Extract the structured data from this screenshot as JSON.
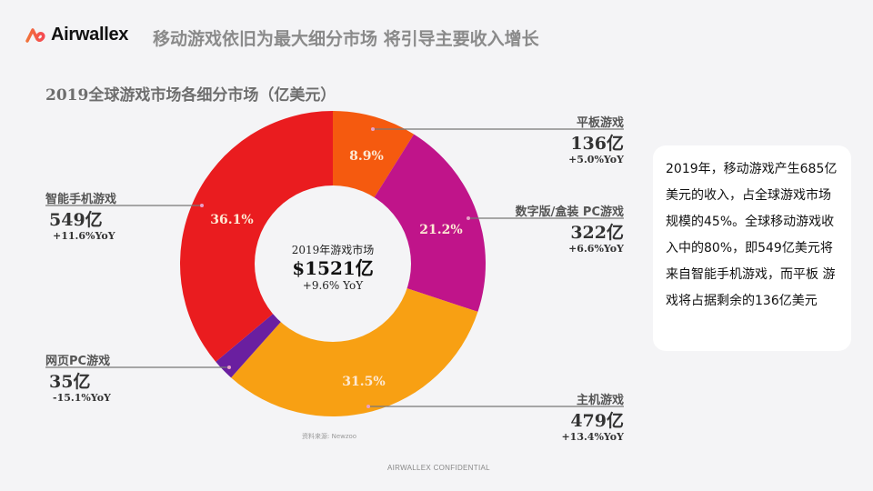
{
  "header": {
    "brand": "Airwallex",
    "headline": "移动游戏依旧为最大细分市场 将引导主要收入增长"
  },
  "chart_title": "2019全球游戏市场各细分市场（亿美元）",
  "center": {
    "label": "2019年游戏市场",
    "total": "$1521亿",
    "yoy": "+9.6% YoY"
  },
  "callouts": {
    "tablet": {
      "name": "平板游戏",
      "value": "136亿",
      "yoy": "+5.0%YoY"
    },
    "pc_boxed": {
      "name": "数字版/盒装 PC游戏",
      "value": "322亿",
      "yoy": "+6.6%YoY"
    },
    "console": {
      "name": "主机游戏",
      "value": "479亿",
      "yoy": "+13.4%YoY"
    },
    "smartphone": {
      "name": "智能手机游戏",
      "value": "549亿",
      "yoy": "+11.6%YoY"
    },
    "web_pc": {
      "name": "网页PC游戏",
      "value": "35亿",
      "yoy": "-15.1%YoY"
    }
  },
  "segments": {
    "tablet": "8.9%",
    "pc_boxed": "21.2%",
    "console": "31.5%",
    "smartphone": "36.1%"
  },
  "note": "2019年，移动游戏产生685亿美元的收入，占全球游戏市场规模的45%。全球移动游戏收入中的80%，即549亿美元将来自智能手机游戏，而平板 游戏将占据剩余的136亿美元",
  "source": "资料来源: Newzoo",
  "footer": "AIRWALLEX CONFIDENTIAL",
  "colors": {
    "tablet": "#f55a0f",
    "pc_boxed": "#c0148a",
    "console": "#f8a013",
    "web_pc": "#6a1fa0",
    "smartphone": "#ea1c1f"
  },
  "chart_data": {
    "type": "pie",
    "title": "2019全球游戏市场各细分市场（亿美元）",
    "donut": true,
    "center_text": [
      "2019年游戏市场",
      "$1521亿",
      "+9.6% YoY"
    ],
    "categories": [
      "平板游戏",
      "数字版/盒装 PC游戏",
      "主机游戏",
      "网页PC游戏",
      "智能手机游戏"
    ],
    "values": [
      136,
      322,
      479,
      35,
      549
    ],
    "percentages": [
      8.9,
      21.2,
      31.5,
      2.3,
      36.1
    ],
    "yoy": [
      "+5.0%",
      "+6.6%",
      "+13.4%",
      "-15.1%",
      "+11.6%"
    ],
    "unit": "亿美元",
    "total": 1521
  }
}
